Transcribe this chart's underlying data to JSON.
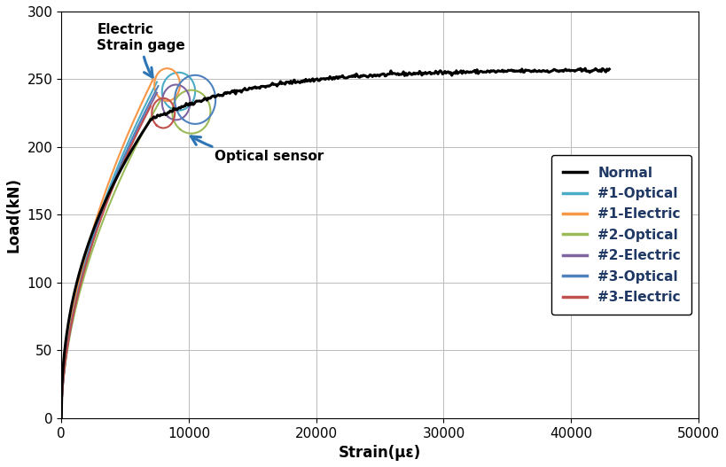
{
  "title": "",
  "xlabel": "Strain(με)",
  "ylabel": "Load(kN)",
  "xlim": [
    0,
    50000
  ],
  "ylim": [
    0,
    300
  ],
  "xticks": [
    0,
    10000,
    20000,
    30000,
    40000,
    50000
  ],
  "yticks": [
    0,
    50,
    100,
    150,
    200,
    250,
    300
  ],
  "legend_labels": [
    "Normal",
    "#1-Optical",
    "#1-Electric",
    "#2-Optical",
    "#2-Electric",
    "#3-Optical",
    "#3-Electric"
  ],
  "legend_colors": [
    "#000000",
    "#4bacc6",
    "#f79646",
    "#9bbb59",
    "#8064a2",
    "#4f81bd",
    "#c0504d"
  ],
  "annotation_electric": "Electric\nStrain gage",
  "annotation_optical": "Optical sensor",
  "background_color": "#ffffff",
  "text_color": "#1f3864"
}
